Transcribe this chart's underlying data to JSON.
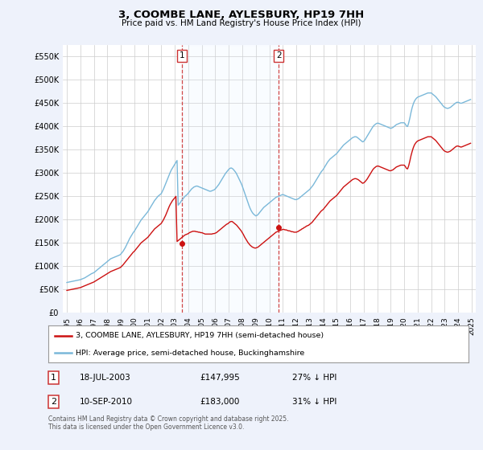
{
  "title": "3, COOMBE LANE, AYLESBURY, HP19 7HH",
  "subtitle": "Price paid vs. HM Land Registry's House Price Index (HPI)",
  "ylim": [
    0,
    575000
  ],
  "yticks": [
    0,
    50000,
    100000,
    150000,
    200000,
    250000,
    300000,
    350000,
    400000,
    450000,
    500000,
    550000
  ],
  "ytick_labels": [
    "£0",
    "£50K",
    "£100K",
    "£150K",
    "£200K",
    "£250K",
    "£300K",
    "£350K",
    "£400K",
    "£450K",
    "£500K",
    "£550K"
  ],
  "legend_labels": [
    "3, COOMBE LANE, AYLESBURY, HP19 7HH (semi-detached house)",
    "HPI: Average price, semi-detached house, Buckinghamshire"
  ],
  "sale1_date": "18-JUL-2003",
  "sale1_price": "£147,995",
  "sale1_hpi": "27% ↓ HPI",
  "sale2_date": "10-SEP-2010",
  "sale2_price": "£183,000",
  "sale2_hpi": "31% ↓ HPI",
  "footer": "Contains HM Land Registry data © Crown copyright and database right 2025.\nThis data is licensed under the Open Government Licence v3.0.",
  "bg_color": "#eef2fb",
  "plot_bg_color": "#ffffff",
  "grid_color": "#cccccc",
  "hpi_color": "#7ab8d9",
  "price_color": "#cc1111",
  "vline_color": "#cc3333",
  "shade_color": "#ddeeff",
  "marker1_x": 2003.54,
  "marker1_y": 147995,
  "marker2_x": 2010.69,
  "marker2_y": 183000,
  "xlim_left": 1994.7,
  "xlim_right": 2025.3,
  "hpi_years": [
    1995.0,
    1995.083,
    1995.167,
    1995.25,
    1995.333,
    1995.417,
    1995.5,
    1995.583,
    1995.667,
    1995.75,
    1995.833,
    1995.917,
    1996.0,
    1996.083,
    1996.167,
    1996.25,
    1996.333,
    1996.417,
    1996.5,
    1996.583,
    1996.667,
    1996.75,
    1996.833,
    1996.917,
    1997.0,
    1997.083,
    1997.167,
    1997.25,
    1997.333,
    1997.417,
    1997.5,
    1997.583,
    1997.667,
    1997.75,
    1997.833,
    1997.917,
    1998.0,
    1998.083,
    1998.167,
    1998.25,
    1998.333,
    1998.417,
    1998.5,
    1998.583,
    1998.667,
    1998.75,
    1998.833,
    1998.917,
    1999.0,
    1999.083,
    1999.167,
    1999.25,
    1999.333,
    1999.417,
    1999.5,
    1999.583,
    1999.667,
    1999.75,
    1999.833,
    1999.917,
    2000.0,
    2000.083,
    2000.167,
    2000.25,
    2000.333,
    2000.417,
    2000.5,
    2000.583,
    2000.667,
    2000.75,
    2000.833,
    2000.917,
    2001.0,
    2001.083,
    2001.167,
    2001.25,
    2001.333,
    2001.417,
    2001.5,
    2001.583,
    2001.667,
    2001.75,
    2001.833,
    2001.917,
    2002.0,
    2002.083,
    2002.167,
    2002.25,
    2002.333,
    2002.417,
    2002.5,
    2002.583,
    2002.667,
    2002.75,
    2002.833,
    2002.917,
    2003.0,
    2003.083,
    2003.167,
    2003.25,
    2003.333,
    2003.417,
    2003.5,
    2003.583,
    2003.667,
    2003.75,
    2003.833,
    2003.917,
    2004.0,
    2004.083,
    2004.167,
    2004.25,
    2004.333,
    2004.417,
    2004.5,
    2004.583,
    2004.667,
    2004.75,
    2004.833,
    2004.917,
    2005.0,
    2005.083,
    2005.167,
    2005.25,
    2005.333,
    2005.417,
    2005.5,
    2005.583,
    2005.667,
    2005.75,
    2005.833,
    2005.917,
    2006.0,
    2006.083,
    2006.167,
    2006.25,
    2006.333,
    2006.417,
    2006.5,
    2006.583,
    2006.667,
    2006.75,
    2006.833,
    2006.917,
    2007.0,
    2007.083,
    2007.167,
    2007.25,
    2007.333,
    2007.417,
    2007.5,
    2007.583,
    2007.667,
    2007.75,
    2007.833,
    2007.917,
    2008.0,
    2008.083,
    2008.167,
    2008.25,
    2008.333,
    2008.417,
    2008.5,
    2008.583,
    2008.667,
    2008.75,
    2008.833,
    2008.917,
    2009.0,
    2009.083,
    2009.167,
    2009.25,
    2009.333,
    2009.417,
    2009.5,
    2009.583,
    2009.667,
    2009.75,
    2009.833,
    2009.917,
    2010.0,
    2010.083,
    2010.167,
    2010.25,
    2010.333,
    2010.417,
    2010.5,
    2010.583,
    2010.667,
    2010.75,
    2010.833,
    2010.917,
    2011.0,
    2011.083,
    2011.167,
    2011.25,
    2011.333,
    2011.417,
    2011.5,
    2011.583,
    2011.667,
    2011.75,
    2011.833,
    2011.917,
    2012.0,
    2012.083,
    2012.167,
    2012.25,
    2012.333,
    2012.417,
    2012.5,
    2012.583,
    2012.667,
    2012.75,
    2012.833,
    2012.917,
    2013.0,
    2013.083,
    2013.167,
    2013.25,
    2013.333,
    2013.417,
    2013.5,
    2013.583,
    2013.667,
    2013.75,
    2013.833,
    2013.917,
    2014.0,
    2014.083,
    2014.167,
    2014.25,
    2014.333,
    2014.417,
    2014.5,
    2014.583,
    2014.667,
    2014.75,
    2014.833,
    2014.917,
    2015.0,
    2015.083,
    2015.167,
    2015.25,
    2015.333,
    2015.417,
    2015.5,
    2015.583,
    2015.667,
    2015.75,
    2015.833,
    2015.917,
    2016.0,
    2016.083,
    2016.167,
    2016.25,
    2016.333,
    2016.417,
    2016.5,
    2016.583,
    2016.667,
    2016.75,
    2016.833,
    2016.917,
    2017.0,
    2017.083,
    2017.167,
    2017.25,
    2017.333,
    2017.417,
    2017.5,
    2017.583,
    2017.667,
    2017.75,
    2017.833,
    2017.917,
    2018.0,
    2018.083,
    2018.167,
    2018.25,
    2018.333,
    2018.417,
    2018.5,
    2018.583,
    2018.667,
    2018.75,
    2018.833,
    2018.917,
    2019.0,
    2019.083,
    2019.167,
    2019.25,
    2019.333,
    2019.417,
    2019.5,
    2019.583,
    2019.667,
    2019.75,
    2019.833,
    2019.917,
    2020.0,
    2020.083,
    2020.167,
    2020.25,
    2020.333,
    2020.417,
    2020.5,
    2020.583,
    2020.667,
    2020.75,
    2020.833,
    2020.917,
    2021.0,
    2021.083,
    2021.167,
    2021.25,
    2021.333,
    2021.417,
    2021.5,
    2021.583,
    2021.667,
    2021.75,
    2021.833,
    2021.917,
    2022.0,
    2022.083,
    2022.167,
    2022.25,
    2022.333,
    2022.417,
    2022.5,
    2022.583,
    2022.667,
    2022.75,
    2022.833,
    2022.917,
    2023.0,
    2023.083,
    2023.167,
    2023.25,
    2023.333,
    2023.417,
    2023.5,
    2023.583,
    2023.667,
    2023.75,
    2023.833,
    2023.917,
    2024.0,
    2024.083,
    2024.167,
    2024.25,
    2024.333,
    2024.417,
    2024.5,
    2024.583,
    2024.667,
    2024.75,
    2024.833,
    2024.917
  ],
  "hpi_vals": [
    65000,
    65500,
    66000,
    66500,
    67000,
    67500,
    68000,
    68500,
    69000,
    69500,
    70000,
    70500,
    71000,
    72000,
    73000,
    74000,
    75000,
    76500,
    78000,
    79500,
    81000,
    82500,
    84000,
    85000,
    86000,
    88000,
    90000,
    92000,
    94000,
    96000,
    98000,
    100000,
    102000,
    104000,
    106000,
    108000,
    110000,
    112000,
    114000,
    116000,
    117000,
    118000,
    119000,
    120000,
    121000,
    122000,
    123000,
    124000,
    126000,
    129000,
    132000,
    136000,
    140000,
    145000,
    150000,
    155000,
    160000,
    164000,
    168000,
    172000,
    175000,
    179000,
    183000,
    187000,
    191000,
    195000,
    199000,
    202000,
    205000,
    208000,
    211000,
    214000,
    217000,
    221000,
    225000,
    229000,
    233000,
    237000,
    241000,
    244000,
    247000,
    250000,
    252000,
    254000,
    256000,
    261000,
    266000,
    272000,
    278000,
    284000,
    290000,
    296000,
    302000,
    307000,
    311000,
    315000,
    319000,
    323000,
    327000,
    231000,
    234000,
    237000,
    241000,
    244000,
    247000,
    250000,
    252000,
    254000,
    257000,
    260000,
    263000,
    266000,
    268000,
    270000,
    271000,
    272000,
    272000,
    271000,
    270000,
    269000,
    268000,
    267000,
    266000,
    265000,
    264000,
    263000,
    262000,
    261000,
    261000,
    262000,
    263000,
    264000,
    266000,
    269000,
    272000,
    275000,
    279000,
    283000,
    287000,
    291000,
    295000,
    299000,
    302000,
    305000,
    308000,
    310000,
    311000,
    310000,
    308000,
    305000,
    302000,
    298000,
    293000,
    288000,
    283000,
    278000,
    272000,
    265000,
    258000,
    251000,
    244000,
    237000,
    230000,
    224000,
    219000,
    215000,
    212000,
    210000,
    208000,
    209000,
    211000,
    214000,
    217000,
    220000,
    223000,
    226000,
    228000,
    230000,
    232000,
    234000,
    236000,
    238000,
    240000,
    242000,
    244000,
    246000,
    248000,
    249000,
    250000,
    251000,
    252000,
    253000,
    254000,
    253000,
    252000,
    251000,
    250000,
    249000,
    248000,
    247000,
    246000,
    245000,
    244000,
    243000,
    243000,
    244000,
    245000,
    247000,
    249000,
    251000,
    253000,
    255000,
    257000,
    259000,
    261000,
    263000,
    265000,
    268000,
    271000,
    274000,
    278000,
    282000,
    286000,
    290000,
    294000,
    298000,
    302000,
    305000,
    308000,
    312000,
    316000,
    320000,
    324000,
    327000,
    330000,
    332000,
    334000,
    336000,
    338000,
    340000,
    342000,
    345000,
    348000,
    351000,
    354000,
    357000,
    360000,
    362000,
    364000,
    366000,
    368000,
    370000,
    372000,
    374000,
    376000,
    377000,
    378000,
    378000,
    377000,
    375000,
    373000,
    371000,
    369000,
    367000,
    368000,
    371000,
    375000,
    379000,
    383000,
    387000,
    391000,
    395000,
    399000,
    402000,
    404000,
    406000,
    407000,
    407000,
    406000,
    405000,
    404000,
    403000,
    402000,
    401000,
    400000,
    399000,
    398000,
    397000,
    396000,
    397000,
    398000,
    400000,
    402000,
    404000,
    405000,
    406000,
    407000,
    408000,
    408000,
    408000,
    408000,
    405000,
    401000,
    400000,
    408000,
    418000,
    430000,
    440000,
    448000,
    454000,
    458000,
    461000,
    463000,
    464000,
    465000,
    466000,
    467000,
    468000,
    469000,
    470000,
    471000,
    472000,
    472000,
    472000,
    472000,
    470000,
    468000,
    466000,
    464000,
    461000,
    458000,
    455000,
    452000,
    449000,
    446000,
    443000,
    441000,
    440000,
    439000,
    439000,
    440000,
    441000,
    443000,
    445000,
    447000,
    449000,
    451000,
    452000,
    452000,
    451000,
    450000,
    450000,
    451000,
    452000,
    453000,
    454000,
    455000,
    456000,
    457000,
    458000
  ],
  "price_years": [
    1995.0,
    1995.083,
    1995.167,
    1995.25,
    1995.333,
    1995.417,
    1995.5,
    1995.583,
    1995.667,
    1995.75,
    1995.833,
    1995.917,
    1996.0,
    1996.083,
    1996.167,
    1996.25,
    1996.333,
    1996.417,
    1996.5,
    1996.583,
    1996.667,
    1996.75,
    1996.833,
    1996.917,
    1997.0,
    1997.083,
    1997.167,
    1997.25,
    1997.333,
    1997.417,
    1997.5,
    1997.583,
    1997.667,
    1997.75,
    1997.833,
    1997.917,
    1998.0,
    1998.083,
    1998.167,
    1998.25,
    1998.333,
    1998.417,
    1998.5,
    1998.583,
    1998.667,
    1998.75,
    1998.833,
    1998.917,
    1999.0,
    1999.083,
    1999.167,
    1999.25,
    1999.333,
    1999.417,
    1999.5,
    1999.583,
    1999.667,
    1999.75,
    1999.833,
    1999.917,
    2000.0,
    2000.083,
    2000.167,
    2000.25,
    2000.333,
    2000.417,
    2000.5,
    2000.583,
    2000.667,
    2000.75,
    2000.833,
    2000.917,
    2001.0,
    2001.083,
    2001.167,
    2001.25,
    2001.333,
    2001.417,
    2001.5,
    2001.583,
    2001.667,
    2001.75,
    2001.833,
    2001.917,
    2002.0,
    2002.083,
    2002.167,
    2002.25,
    2002.333,
    2002.417,
    2002.5,
    2002.583,
    2002.667,
    2002.75,
    2002.833,
    2002.917,
    2003.0,
    2003.083,
    2003.167,
    2003.25,
    2003.333,
    2003.417,
    2003.5,
    2003.583,
    2003.667,
    2003.75,
    2003.833,
    2003.917,
    2004.0,
    2004.083,
    2004.167,
    2004.25,
    2004.333,
    2004.417,
    2004.5,
    2004.583,
    2004.667,
    2004.75,
    2004.833,
    2004.917,
    2005.0,
    2005.083,
    2005.167,
    2005.25,
    2005.333,
    2005.417,
    2005.5,
    2005.583,
    2005.667,
    2005.75,
    2005.833,
    2005.917,
    2006.0,
    2006.083,
    2006.167,
    2006.25,
    2006.333,
    2006.417,
    2006.5,
    2006.583,
    2006.667,
    2006.75,
    2006.833,
    2006.917,
    2007.0,
    2007.083,
    2007.167,
    2007.25,
    2007.333,
    2007.417,
    2007.5,
    2007.583,
    2007.667,
    2007.75,
    2007.833,
    2007.917,
    2008.0,
    2008.083,
    2008.167,
    2008.25,
    2008.333,
    2008.417,
    2008.5,
    2008.583,
    2008.667,
    2008.75,
    2008.833,
    2008.917,
    2009.0,
    2009.083,
    2009.167,
    2009.25,
    2009.333,
    2009.417,
    2009.5,
    2009.583,
    2009.667,
    2009.75,
    2009.833,
    2009.917,
    2010.0,
    2010.083,
    2010.167,
    2010.25,
    2010.333,
    2010.417,
    2010.5,
    2010.583,
    2010.667,
    2010.75,
    2010.833,
    2010.917,
    2011.0,
    2011.083,
    2011.167,
    2011.25,
    2011.333,
    2011.417,
    2011.5,
    2011.583,
    2011.667,
    2011.75,
    2011.833,
    2011.917,
    2012.0,
    2012.083,
    2012.167,
    2012.25,
    2012.333,
    2012.417,
    2012.5,
    2012.583,
    2012.667,
    2012.75,
    2012.833,
    2012.917,
    2013.0,
    2013.083,
    2013.167,
    2013.25,
    2013.333,
    2013.417,
    2013.5,
    2013.583,
    2013.667,
    2013.75,
    2013.833,
    2013.917,
    2014.0,
    2014.083,
    2014.167,
    2014.25,
    2014.333,
    2014.417,
    2014.5,
    2014.583,
    2014.667,
    2014.75,
    2014.833,
    2014.917,
    2015.0,
    2015.083,
    2015.167,
    2015.25,
    2015.333,
    2015.417,
    2015.5,
    2015.583,
    2015.667,
    2015.75,
    2015.833,
    2015.917,
    2016.0,
    2016.083,
    2016.167,
    2016.25,
    2016.333,
    2016.417,
    2016.5,
    2016.583,
    2016.667,
    2016.75,
    2016.833,
    2016.917,
    2017.0,
    2017.083,
    2017.167,
    2017.25,
    2017.333,
    2017.417,
    2017.5,
    2017.583,
    2017.667,
    2017.75,
    2017.833,
    2017.917,
    2018.0,
    2018.083,
    2018.167,
    2018.25,
    2018.333,
    2018.417,
    2018.5,
    2018.583,
    2018.667,
    2018.75,
    2018.833,
    2018.917,
    2019.0,
    2019.083,
    2019.167,
    2019.25,
    2019.333,
    2019.417,
    2019.5,
    2019.583,
    2019.667,
    2019.75,
    2019.833,
    2019.917,
    2020.0,
    2020.083,
    2020.167,
    2020.25,
    2020.333,
    2020.417,
    2020.5,
    2020.583,
    2020.667,
    2020.75,
    2020.833,
    2020.917,
    2021.0,
    2021.083,
    2021.167,
    2021.25,
    2021.333,
    2021.417,
    2021.5,
    2021.583,
    2021.667,
    2021.75,
    2021.833,
    2021.917,
    2022.0,
    2022.083,
    2022.167,
    2022.25,
    2022.333,
    2022.417,
    2022.5,
    2022.583,
    2022.667,
    2022.75,
    2022.833,
    2022.917,
    2023.0,
    2023.083,
    2023.167,
    2023.25,
    2023.333,
    2023.417,
    2023.5,
    2023.583,
    2023.667,
    2023.75,
    2023.833,
    2023.917,
    2024.0,
    2024.083,
    2024.167,
    2024.25,
    2024.333,
    2024.417,
    2024.5,
    2024.583,
    2024.667,
    2024.75,
    2024.833,
    2024.917
  ],
  "price_vals": [
    48000,
    48500,
    49000,
    49500,
    50000,
    50500,
    51000,
    51500,
    52000,
    52500,
    53000,
    53500,
    54000,
    55000,
    56000,
    57000,
    58000,
    59000,
    60000,
    61000,
    62000,
    63000,
    64000,
    65000,
    66000,
    67500,
    69000,
    70500,
    72000,
    73500,
    75000,
    76500,
    78000,
    79500,
    81000,
    82500,
    84000,
    85500,
    87000,
    88500,
    89500,
    90500,
    91500,
    92500,
    93500,
    94500,
    95500,
    96500,
    98000,
    100500,
    103000,
    106000,
    109000,
    112000,
    115000,
    118000,
    121000,
    124000,
    127000,
    130000,
    132000,
    135000,
    138000,
    141000,
    144000,
    147000,
    150000,
    152000,
    154000,
    156000,
    158000,
    160000,
    162000,
    165000,
    168000,
    171000,
    174000,
    177000,
    180000,
    182000,
    184000,
    186000,
    188000,
    190000,
    192000,
    196000,
    200000,
    205000,
    210000,
    216000,
    222000,
    228000,
    233000,
    237000,
    241000,
    244000,
    247000,
    250000,
    153000,
    155000,
    157000,
    159000,
    161000,
    163000,
    165000,
    167000,
    168000,
    169000,
    170000,
    172000,
    173000,
    174000,
    175000,
    175000,
    175000,
    174000,
    174000,
    173000,
    173000,
    172000,
    172000,
    171000,
    170000,
    169000,
    169000,
    169000,
    169000,
    169000,
    169000,
    169000,
    170000,
    170000,
    171000,
    172000,
    174000,
    176000,
    178000,
    180000,
    182000,
    184000,
    186000,
    188000,
    190000,
    191000,
    193000,
    195000,
    196000,
    196000,
    194000,
    192000,
    190000,
    188000,
    185000,
    182000,
    179000,
    176000,
    172000,
    168000,
    163000,
    159000,
    155000,
    151000,
    148000,
    145000,
    143000,
    141000,
    140000,
    139000,
    139000,
    140000,
    141000,
    143000,
    145000,
    147000,
    149000,
    151000,
    153000,
    155000,
    157000,
    159000,
    161000,
    163000,
    165000,
    167000,
    169000,
    171000,
    173000,
    174000,
    175000,
    176000,
    177000,
    178000,
    179000,
    179000,
    178000,
    178000,
    177000,
    176000,
    176000,
    175000,
    174000,
    174000,
    173000,
    173000,
    173000,
    174000,
    175000,
    177000,
    178000,
    180000,
    181000,
    183000,
    184000,
    186000,
    187000,
    188000,
    190000,
    192000,
    194000,
    197000,
    200000,
    203000,
    206000,
    209000,
    212000,
    215000,
    218000,
    220000,
    222000,
    225000,
    228000,
    231000,
    234000,
    237000,
    240000,
    242000,
    244000,
    246000,
    248000,
    250000,
    252000,
    255000,
    258000,
    261000,
    264000,
    267000,
    270000,
    272000,
    274000,
    276000,
    278000,
    280000,
    282000,
    284000,
    286000,
    287000,
    288000,
    288000,
    287000,
    286000,
    284000,
    282000,
    280000,
    278000,
    279000,
    281000,
    284000,
    287000,
    291000,
    295000,
    299000,
    303000,
    307000,
    310000,
    312000,
    314000,
    315000,
    315000,
    314000,
    313000,
    312000,
    311000,
    310000,
    309000,
    308000,
    307000,
    306000,
    305000,
    305000,
    306000,
    307000,
    309000,
    311000,
    313000,
    314000,
    315000,
    316000,
    317000,
    317000,
    317000,
    317000,
    314000,
    310000,
    309000,
    316000,
    326000,
    337000,
    346000,
    354000,
    360000,
    364000,
    367000,
    369000,
    370000,
    371000,
    372000,
    373000,
    374000,
    375000,
    376000,
    377000,
    378000,
    378000,
    378000,
    378000,
    376000,
    374000,
    372000,
    370000,
    367000,
    364000,
    361000,
    358000,
    355000,
    352000,
    349000,
    347000,
    346000,
    345000,
    345000,
    346000,
    347000,
    349000,
    351000,
    353000,
    355000,
    357000,
    358000,
    358000,
    357000,
    356000,
    356000,
    357000,
    358000,
    359000,
    360000,
    361000,
    362000,
    363000,
    364000
  ]
}
